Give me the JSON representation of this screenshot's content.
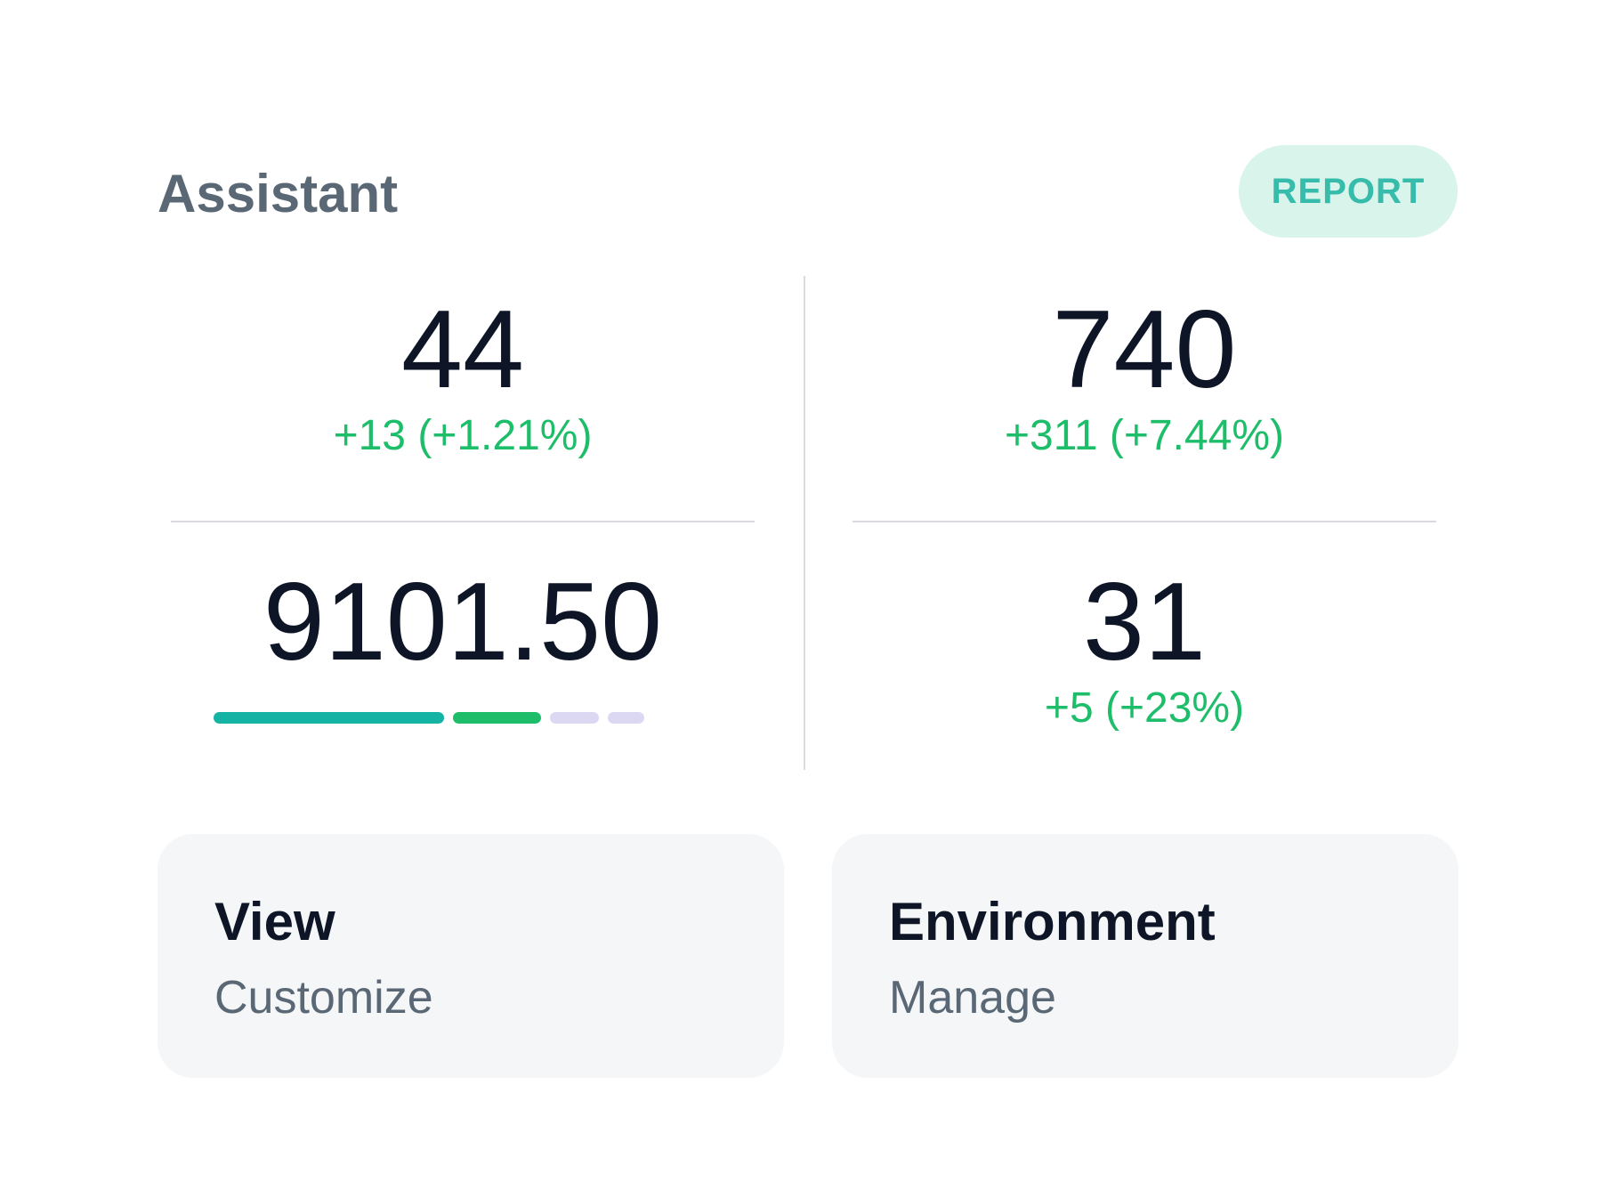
{
  "header": {
    "title": "Assistant",
    "report_label": "REPORT"
  },
  "stats": [
    {
      "value": "44",
      "change": "+13 (+1.21%)"
    },
    {
      "value": "740",
      "change": "+311 (+7.44%)"
    },
    {
      "value": "9101.50"
    },
    {
      "value": "31",
      "change": "+5 (+23%)"
    }
  ],
  "progress_segments": [
    {
      "fraction": 0.47,
      "color": "#14b3a4"
    },
    {
      "fraction": 0.18,
      "color": "#1dbd6a"
    },
    {
      "fraction": 0.1,
      "color": "#dcd8f4"
    },
    {
      "fraction": 0.075,
      "color": "#dcd8f4"
    }
  ],
  "cards": [
    {
      "title": "View",
      "subtitle": "Customize"
    },
    {
      "title": "Environment",
      "subtitle": "Manage"
    }
  ],
  "colors": {
    "accent_green": "#1dbd6a",
    "accent_teal": "#14b3a4",
    "report_bg": "#d8f4eb",
    "report_text": "#37bcac",
    "card_bg": "#f4f6f8"
  }
}
